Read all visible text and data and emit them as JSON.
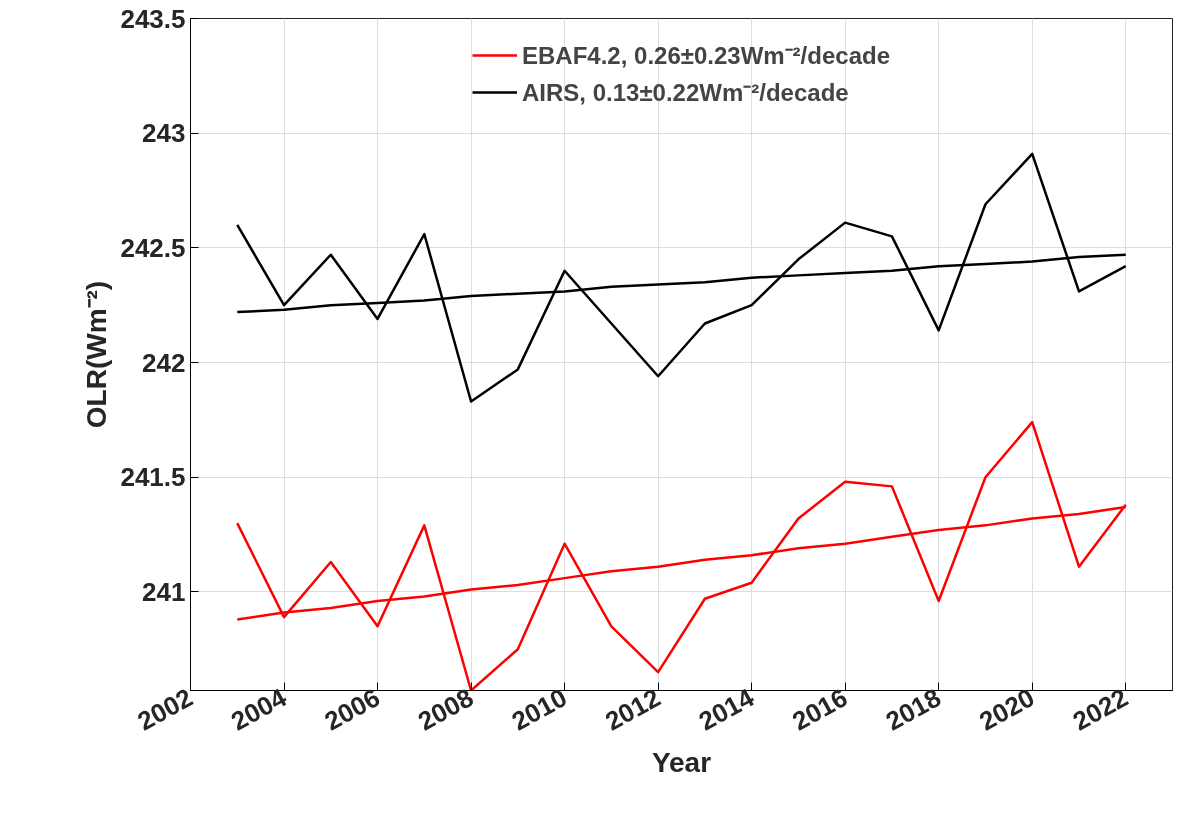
{
  "chart_data": {
    "type": "line",
    "xlabel": "Year",
    "ylabel": "OLR(Wm⁻²)",
    "x": [
      2003,
      2004,
      2005,
      2006,
      2007,
      2008,
      2009,
      2010,
      2011,
      2012,
      2013,
      2014,
      2015,
      2016,
      2017,
      2018,
      2019,
      2020,
      2021,
      2022
    ],
    "series": [
      {
        "name": "EBAF4.2, 0.26±0.23Wm⁻²/decade",
        "color": "#ff0000",
        "values": [
          241.3,
          240.89,
          241.13,
          240.85,
          241.29,
          240.57,
          240.75,
          241.21,
          240.85,
          240.65,
          240.97,
          241.04,
          241.32,
          241.48,
          241.46,
          240.96,
          241.5,
          241.74,
          241.11,
          241.38
        ]
      },
      {
        "name": "AIRS, 0.13±0.22Wm⁻²/decade",
        "color": "#000000",
        "values": [
          242.6,
          242.25,
          242.47,
          242.19,
          242.56,
          241.83,
          241.97,
          242.4,
          242.17,
          241.94,
          242.17,
          242.25,
          242.45,
          242.61,
          242.55,
          242.14,
          242.69,
          242.91,
          242.31,
          242.42
        ]
      },
      {
        "type": "line",
        "color": "#ff0000",
        "values": [
          240.88,
          240.91,
          240.93,
          240.96,
          240.98,
          241.01,
          241.03,
          241.06,
          241.09,
          241.11,
          241.14,
          241.16,
          241.19,
          241.21,
          241.24,
          241.27,
          241.29,
          241.32,
          241.34,
          241.37
        ]
      },
      {
        "type": "line",
        "color": "#000000",
        "values": [
          242.22,
          242.23,
          242.25,
          242.26,
          242.27,
          242.29,
          242.3,
          242.31,
          242.33,
          242.34,
          242.35,
          242.37,
          242.38,
          242.39,
          242.4,
          242.42,
          242.43,
          242.44,
          242.46,
          242.47
        ]
      }
    ],
    "xlim": [
      2002,
      2023
    ],
    "ylim": [
      240.57,
      243.5
    ],
    "xticks": [
      2002,
      2004,
      2006,
      2008,
      2010,
      2012,
      2014,
      2016,
      2018,
      2020,
      2022
    ],
    "yticks": [
      241,
      241.5,
      242,
      242.5,
      243,
      243.5
    ],
    "grid": true,
    "legend": "top",
    "marker": "none",
    "line_style": "solid"
  }
}
